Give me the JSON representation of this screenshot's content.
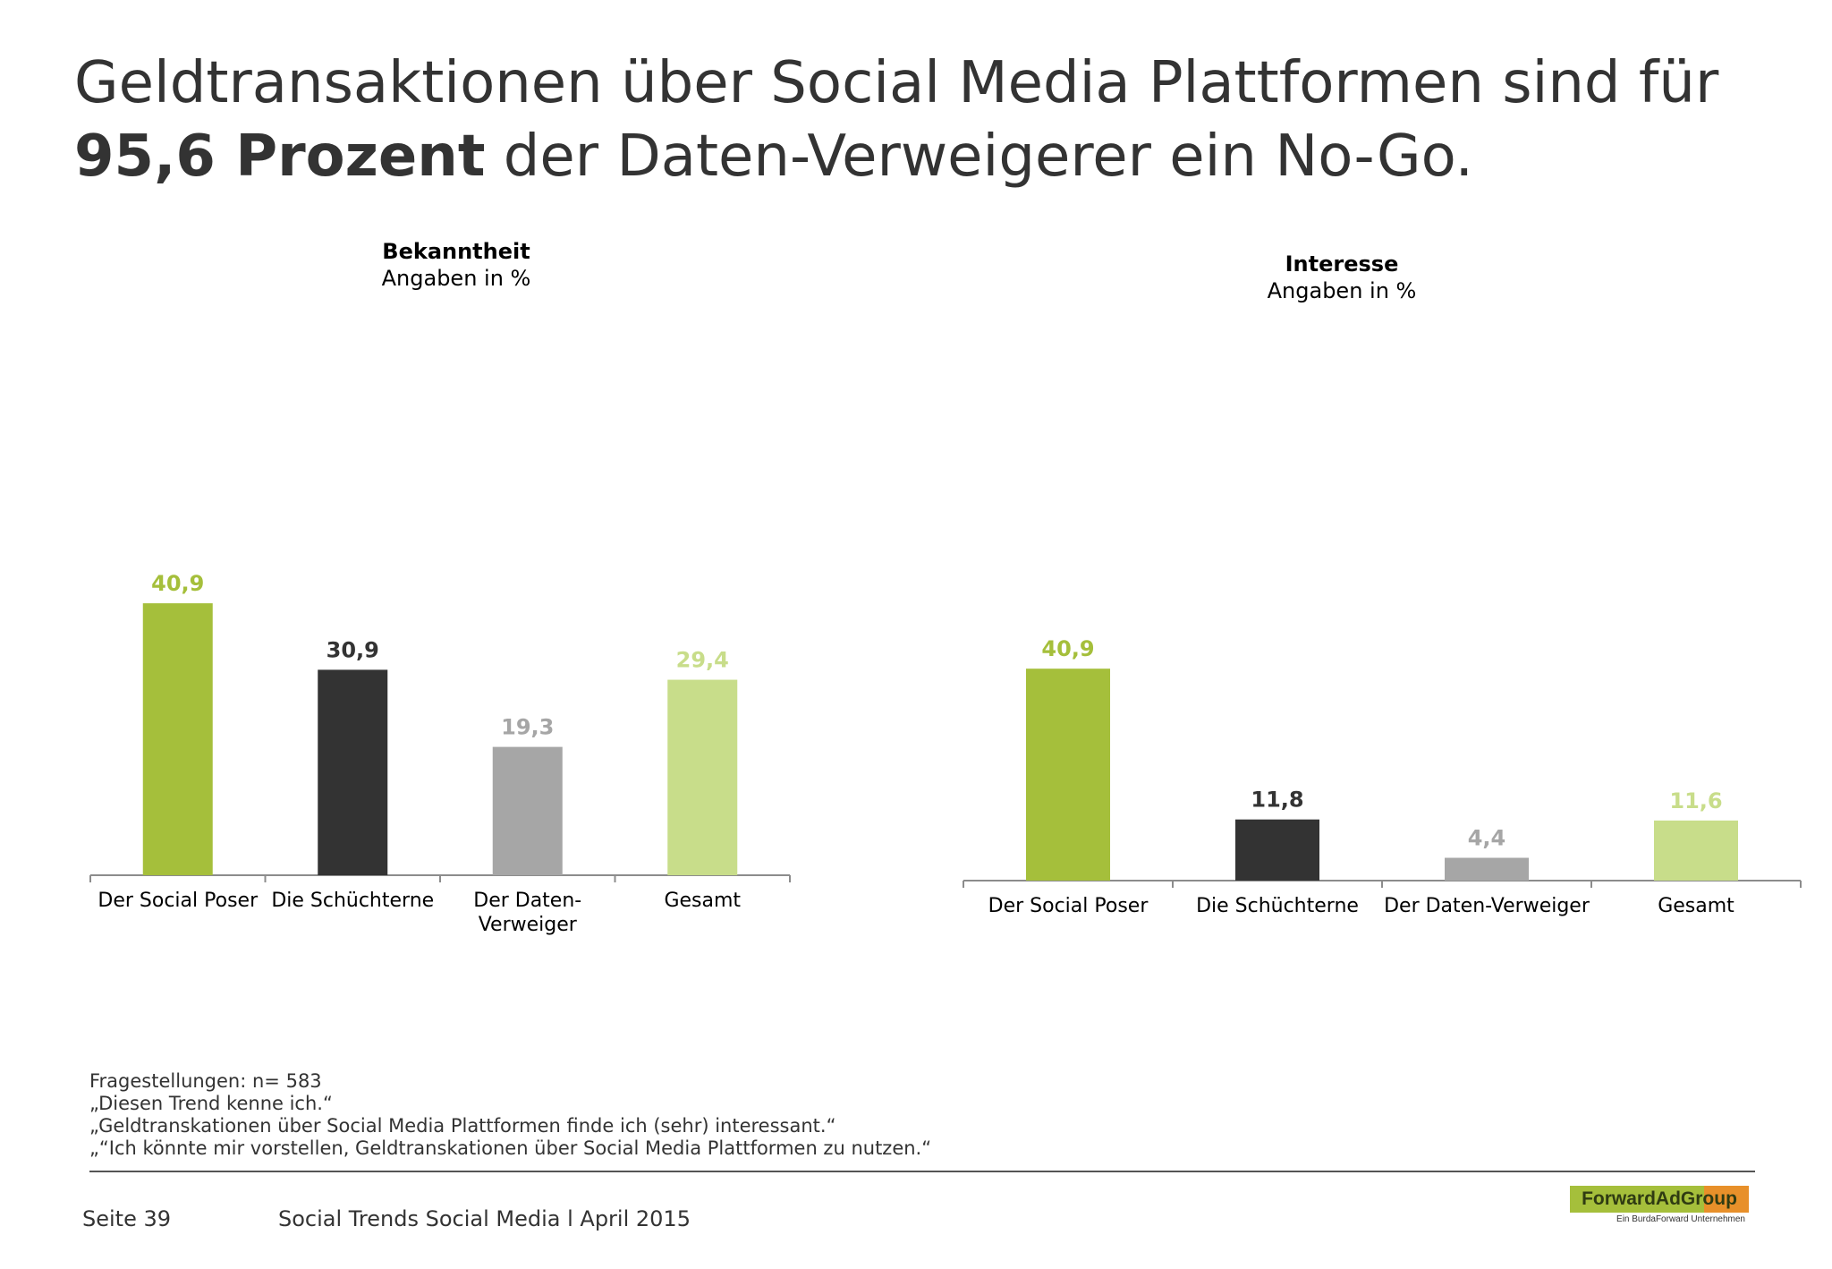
{
  "title": {
    "line1": "Geldtransaktionen über Social Media Plattformen sind für",
    "bold": "95,6 Prozent",
    "rest": " der Daten-Verweigerer ein No-Go."
  },
  "colors": {
    "social_poser": "#a5bf3b",
    "schuechterne": "#333333",
    "daten_verweiger": "#a6a6a6",
    "gesamt": "#c8dd8a"
  },
  "chart_data": [
    {
      "type": "bar",
      "title": "Bekanntheit",
      "subtitle": "Angaben in %",
      "categories": [
        "Der Social Poser",
        "Die Schüchterne",
        "Der Daten-Verweiger",
        "Gesamt"
      ],
      "category_lines": [
        [
          "Der Social Poser"
        ],
        [
          "Die Schüchterne"
        ],
        [
          "Der Daten-",
          "Verweiger"
        ],
        [
          "Gesamt"
        ]
      ],
      "values": [
        40.9,
        30.9,
        19.3,
        29.4
      ],
      "labels": [
        "40,9",
        "30,9",
        "19,3",
        "29,4"
      ],
      "colors": [
        "#a5bf3b",
        "#333333",
        "#a6a6a6",
        "#c8dd8a"
      ],
      "ylim": [
        0,
        100
      ],
      "grid": false
    },
    {
      "type": "bar",
      "title": "Interesse",
      "subtitle": "Angaben in %",
      "categories": [
        "Der Social Poser",
        "Die Schüchterne",
        "Der Daten-Verweiger",
        "Gesamt"
      ],
      "category_lines": [
        [
          "Der Social Poser"
        ],
        [
          "Die Schüchterne"
        ],
        [
          "Der Daten-Verweiger"
        ],
        [
          "Gesamt"
        ]
      ],
      "values": [
        40.9,
        11.8,
        4.4,
        11.6
      ],
      "labels": [
        "40,9",
        "11,8",
        "4,4",
        "11,6"
      ],
      "colors": [
        "#a5bf3b",
        "#333333",
        "#a6a6a6",
        "#c8dd8a"
      ],
      "ylim": [
        0,
        100
      ],
      "grid": false
    }
  ],
  "footnote": {
    "lines": [
      "Fragestellungen: n= 583",
      "„Diesen Trend kenne ich.“",
      "„Geldtranskationen über Social Media Plattformen finde ich (sehr) interessant.“",
      "„“Ich könnte mir vorstellen, Geldtranskationen über Social Media Plattformen zu nutzen.“"
    ]
  },
  "footer": {
    "page": "Seite 39",
    "text": "Social Trends Social Media l April 2015"
  },
  "logo": {
    "name": "ForwardAdGroup",
    "sub": "Ein BurdaForward Unternehmen"
  }
}
